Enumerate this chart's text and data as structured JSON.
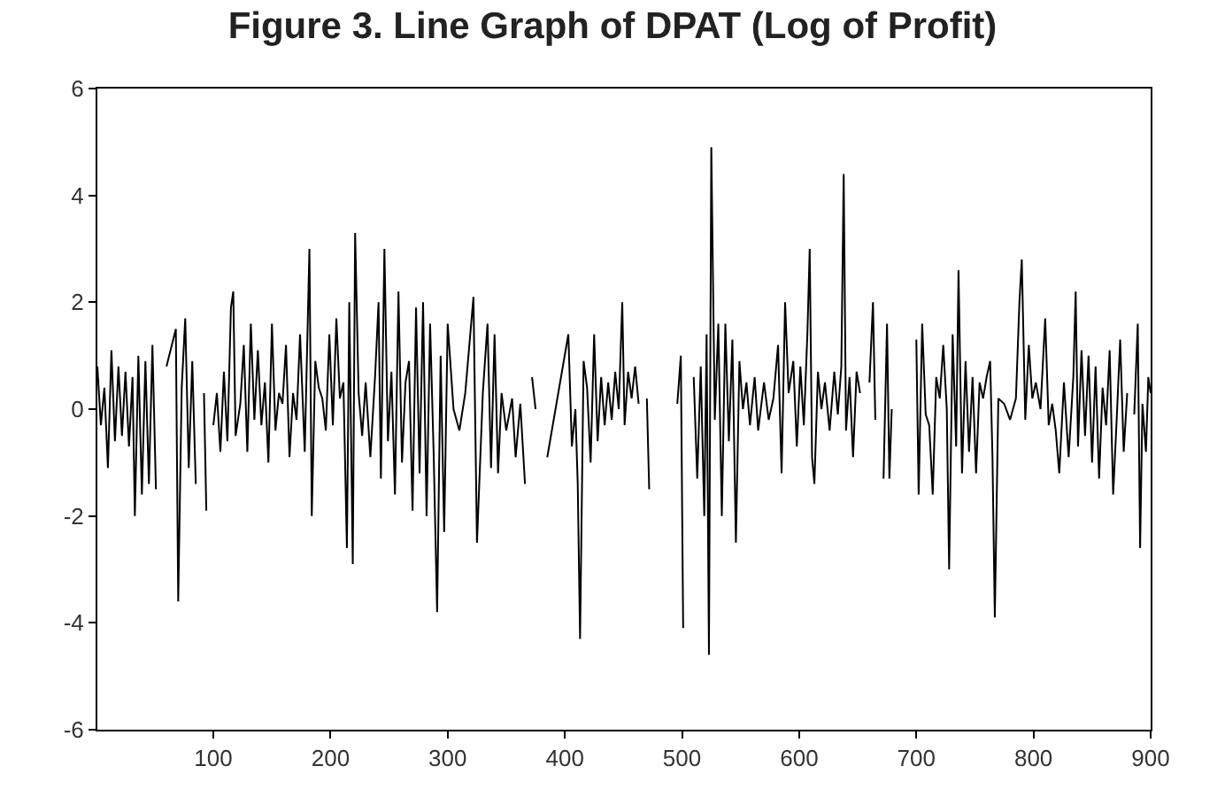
{
  "chart_data": {
    "type": "line",
    "title": "Figure 3. Line Graph of DPAT (Log of Profit)",
    "x": [
      1,
      4,
      7,
      10,
      13,
      16,
      19,
      22,
      25,
      28,
      31,
      33,
      36,
      39,
      42,
      45,
      48,
      51,
      54,
      60,
      68,
      70,
      73,
      76,
      79,
      82,
      85,
      88,
      92,
      94,
      96,
      100,
      103,
      106,
      109,
      112,
      115,
      117,
      119,
      123,
      126,
      129,
      132,
      135,
      138,
      141,
      144,
      147,
      150,
      153,
      156,
      159,
      162,
      165,
      168,
      171,
      174,
      178,
      182,
      184,
      187,
      190,
      193,
      196,
      199,
      202,
      205,
      208,
      211,
      214,
      216,
      219,
      221,
      224,
      227,
      230,
      234,
      238,
      241,
      243,
      246,
      249,
      252,
      255,
      258,
      261,
      264,
      267,
      270,
      273,
      276,
      279,
      282,
      285,
      288,
      291,
      294,
      297,
      300,
      305,
      310,
      315,
      322,
      325,
      330,
      334,
      337,
      340,
      343,
      346,
      350,
      355,
      358,
      362,
      366,
      369,
      372,
      375,
      377,
      385,
      403,
      406,
      409,
      411,
      413,
      416,
      419,
      422,
      425,
      428,
      431,
      434,
      437,
      440,
      443,
      446,
      449,
      451,
      454,
      457,
      460,
      463,
      466,
      470,
      472,
      474,
      496,
      499,
      501,
      503,
      510,
      513,
      516,
      519,
      521,
      523,
      525,
      528,
      531,
      534,
      537,
      540,
      543,
      546,
      549,
      552,
      555,
      558,
      562,
      565,
      570,
      574,
      578,
      582,
      585,
      588,
      591,
      595,
      598,
      601,
      604,
      607,
      609,
      611,
      613,
      616,
      619,
      622,
      626,
      630,
      633,
      636,
      638,
      640,
      643,
      646,
      649,
      652,
      655,
      660,
      663,
      665,
      667,
      672,
      675,
      677,
      679,
      681,
      700,
      702,
      705,
      708,
      711,
      714,
      717,
      720,
      723,
      726,
      728,
      731,
      734,
      736,
      739,
      742,
      745,
      748,
      751,
      754,
      757,
      760,
      763,
      765,
      767,
      770,
      775,
      780,
      785,
      788,
      790,
      793,
      796,
      799,
      802,
      806,
      810,
      813,
      816,
      819,
      822,
      826,
      830,
      834,
      836,
      838,
      841,
      844,
      847,
      850,
      853,
      856,
      859,
      862,
      865,
      868,
      871,
      874,
      877,
      880,
      883,
      886,
      889,
      891,
      893,
      896,
      898,
      900
    ],
    "series": [
      {
        "color": "#000000",
        "values": [
          0.8,
          -0.3,
          0.4,
          -1.1,
          1.1,
          -0.6,
          0.8,
          -0.5,
          0.7,
          -0.7,
          0.6,
          -2.0,
          1.0,
          -1.6,
          0.9,
          -1.4,
          1.2,
          -1.5,
          null,
          0.8,
          1.5,
          -3.6,
          0.4,
          1.7,
          -1.1,
          0.9,
          -1.4,
          null,
          0.3,
          -1.9,
          null,
          -0.3,
          0.3,
          -0.8,
          0.7,
          -0.6,
          1.9,
          2.2,
          -0.5,
          0.1,
          1.2,
          -0.8,
          1.6,
          -0.2,
          1.1,
          -0.3,
          0.5,
          -1.0,
          1.6,
          -0.4,
          0.3,
          0.1,
          1.2,
          -0.9,
          0.3,
          -0.2,
          1.4,
          -0.8,
          3.0,
          -2.0,
          0.9,
          0.4,
          0.2,
          -0.4,
          1.4,
          -0.3,
          1.7,
          0.2,
          0.5,
          -2.6,
          2.0,
          -2.9,
          3.3,
          0.3,
          -0.5,
          0.5,
          -0.9,
          0.6,
          2.0,
          -1.3,
          3.0,
          -0.6,
          0.7,
          -1.6,
          2.2,
          -1.0,
          0.5,
          0.9,
          -1.9,
          1.9,
          -1.2,
          2.0,
          -2.0,
          1.6,
          -0.8,
          -3.8,
          1.0,
          -2.3,
          1.6,
          0.0,
          -0.4,
          0.3,
          2.1,
          -2.5,
          0.3,
          1.6,
          -1.1,
          1.4,
          -1.2,
          0.3,
          -0.4,
          0.2,
          -0.9,
          0.1,
          -1.4,
          null,
          0.6,
          0.0,
          null,
          -0.9,
          1.4,
          -0.7,
          0.0,
          -1.4,
          -4.3,
          0.9,
          0.4,
          -1.0,
          1.4,
          -0.6,
          0.6,
          -0.3,
          0.5,
          -0.2,
          0.7,
          0.0,
          2.0,
          -0.3,
          0.7,
          0.2,
          0.8,
          0.1,
          null,
          0.2,
          -1.5,
          null,
          0.1,
          1.0,
          -4.1,
          null,
          0.6,
          -1.3,
          0.8,
          -2.0,
          1.4,
          -4.6,
          4.9,
          -0.2,
          1.6,
          -2.0,
          1.6,
          -0.6,
          1.3,
          -2.5,
          0.9,
          0.0,
          0.5,
          -0.3,
          0.6,
          -0.4,
          0.5,
          -0.2,
          0.2,
          1.2,
          -1.2,
          2.0,
          0.3,
          0.9,
          -0.7,
          0.8,
          -0.3,
          1.4,
          3.0,
          -0.9,
          -1.4,
          0.7,
          0.0,
          0.5,
          -0.4,
          0.7,
          -0.1,
          0.8,
          4.4,
          -0.4,
          0.6,
          -0.9,
          0.7,
          0.3,
          null,
          0.5,
          2.0,
          -0.2,
          null,
          -1.3,
          1.6,
          -1.3,
          0.0,
          null,
          1.3,
          -1.6,
          1.6,
          -0.1,
          -0.3,
          -1.6,
          0.6,
          0.2,
          1.2,
          0.0,
          -3.0,
          1.4,
          -0.7,
          2.6,
          -1.2,
          0.9,
          -0.8,
          0.6,
          -1.2,
          0.5,
          0.2,
          0.6,
          0.9,
          -0.9,
          -3.9,
          0.2,
          0.1,
          -0.2,
          0.2,
          2.0,
          2.8,
          -0.2,
          1.2,
          0.2,
          0.5,
          0.0,
          1.7,
          -0.3,
          0.1,
          -0.4,
          -1.2,
          0.5,
          -0.9,
          0.6,
          2.2,
          -0.7,
          1.1,
          -0.5,
          1.0,
          -1.0,
          0.8,
          -1.3,
          0.4,
          -0.3,
          1.1,
          -1.6,
          -0.2,
          1.3,
          -0.8,
          0.3,
          null,
          -0.1,
          1.6,
          -2.6,
          0.1,
          -0.8,
          0.6,
          0.3
        ]
      }
    ],
    "xlim": [
      1,
      900
    ],
    "xticks": [
      100,
      200,
      300,
      400,
      500,
      600,
      700,
      800,
      900
    ],
    "ylim": [
      -6,
      6
    ],
    "yticks": [
      -6,
      -4,
      -2,
      0,
      2,
      4,
      6
    ],
    "line_style": "solid",
    "marker": "none"
  }
}
